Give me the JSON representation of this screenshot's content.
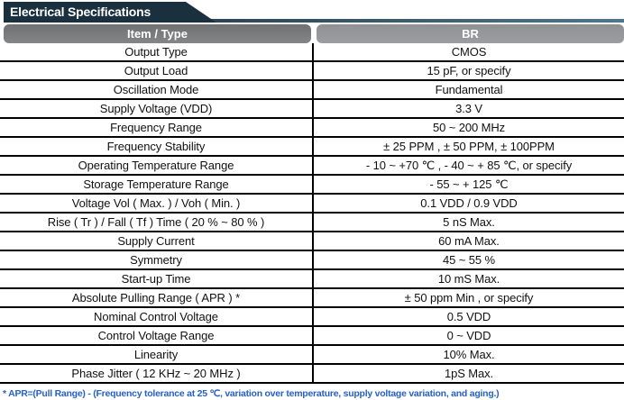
{
  "page": {
    "title": "Electrical Specifications"
  },
  "table": {
    "columns": [
      "Item / Type",
      "BR"
    ],
    "rows": [
      {
        "item": "Output Type",
        "value": "CMOS"
      },
      {
        "item": "Output Load",
        "value": "15 pF, or specify"
      },
      {
        "item": "Oscillation Mode",
        "value": "Fundamental"
      },
      {
        "item": "Supply Voltage (VDD)",
        "value": "3.3 V"
      },
      {
        "item": "Frequency Range",
        "value": "50 ~ 200 MHz"
      },
      {
        "item": "Frequency Stability",
        "value": "± 25 PPM , ± 50 PPM, ± 100PPM"
      },
      {
        "item": "Operating Temperature Range",
        "value": "- 10 ~ +70 ℃ , - 40 ~ + 85 ℃, or specify"
      },
      {
        "item": "Storage Temperature Range",
        "value": "- 55 ~ + 125 ℃"
      },
      {
        "item": "Voltage Vol ( Max. ) / Voh ( Min. )",
        "value": "0.1 VDD / 0.9 VDD"
      },
      {
        "item": "Rise ( Tr ) / Fall ( Tf ) Time ( 20 % ~ 80 % )",
        "value": "5 nS Max."
      },
      {
        "item": "Supply Current",
        "value": "60 mA Max."
      },
      {
        "item": "Symmetry",
        "value": "45 ~ 55 %"
      },
      {
        "item": "Start-up Time",
        "value": "10 mS Max."
      },
      {
        "item": "Absolute Pulling Range ( APR ) *",
        "value": "± 50 ppm Min , or specify"
      },
      {
        "item": "Nominal Control Voltage",
        "value": "0.5 VDD"
      },
      {
        "item": "Control Voltage Range",
        "value": "0 ~ VDD"
      },
      {
        "item": "Linearity",
        "value": "10% Max."
      },
      {
        "item": "Phase Jitter ( 12 KHz ~ 20 MHz )",
        "value": "1pS Max."
      }
    ]
  },
  "footnote": "* APR=(Pull Range) - (Frequency tolerance at 25 ℃, variation over temperature, supply voltage variation, and aging.)",
  "colors": {
    "banner": "#1a303e",
    "line_start": "#27404f",
    "line_end": "#4d7690",
    "header_left_top": "#6f7173",
    "header_left_bottom": "#838587",
    "header_right_top": "#8f9193",
    "header_right_bottom": "#9c9da0",
    "footnote_blue": "#2661c5"
  }
}
